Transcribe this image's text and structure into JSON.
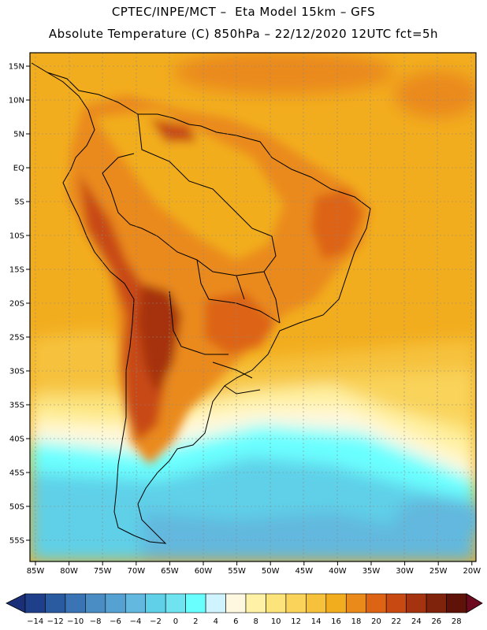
{
  "header": {
    "line1": "CPTEC/INPE/MCT –  Eta Model 15km – GFS",
    "line2": "Absolute Temperature (C) 850hPa – 22/12/2020 12UTC fct=5h"
  },
  "axes": {
    "lat_labels": [
      "15N",
      "10N",
      "5N",
      "EQ",
      "5S",
      "10S",
      "15S",
      "20S",
      "25S",
      "30S",
      "35S",
      "40S",
      "45S",
      "50S",
      "55S"
    ],
    "lon_labels": [
      "85W",
      "80W",
      "75W",
      "70W",
      "65W",
      "60W",
      "55W",
      "50W",
      "45W",
      "40W",
      "35W",
      "30W",
      "25W",
      "20W"
    ]
  },
  "colorbar": {
    "tick_labels": [
      "−14",
      "−12",
      "−10",
      "−8",
      "−6",
      "−4",
      "−2",
      "0",
      "2",
      "4",
      "6",
      "8",
      "10",
      "12",
      "14",
      "16",
      "18",
      "20",
      "22",
      "24",
      "26",
      "28"
    ],
    "colors": [
      "#1f3f8a",
      "#2a5aa0",
      "#3a74b4",
      "#4a8cc4",
      "#55a2d2",
      "#62b8de",
      "#5fd0e8",
      "#6fe4f0",
      "#6affff",
      "#d0f4ff",
      "#fff8e0",
      "#fff2a6",
      "#fce37a",
      "#f9d35a",
      "#f6c23c",
      "#f2ad1e",
      "#ea8a1a",
      "#dd6414",
      "#c84a12",
      "#a6330f",
      "#80230c",
      "#5e1208"
    ],
    "under_color": "#1b2f78",
    "over_color": "#6e0a20"
  }
}
